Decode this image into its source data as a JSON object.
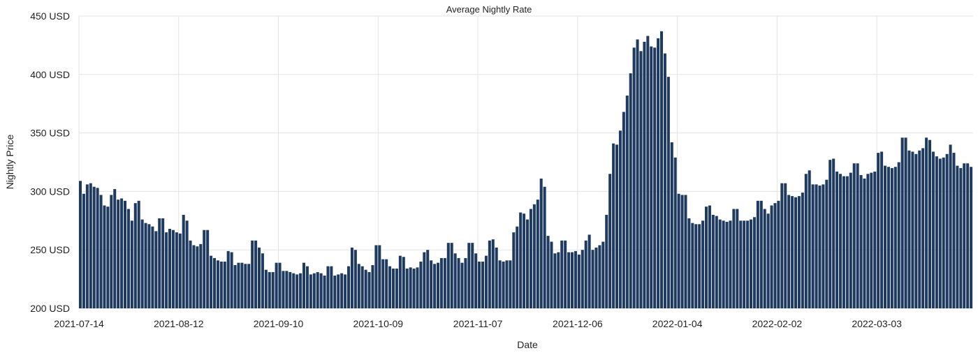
{
  "chart_data": {
    "type": "bar",
    "title": "Average Nightly Rate",
    "xlabel": "Date",
    "ylabel": "Nightly Price",
    "ylim": [
      200,
      450
    ],
    "y_ticks": [
      {
        "value": 200,
        "label": "200 USD"
      },
      {
        "value": 250,
        "label": "250 USD"
      },
      {
        "value": 300,
        "label": "300 USD"
      },
      {
        "value": 350,
        "label": "350 USD"
      },
      {
        "value": 400,
        "label": "400 USD"
      },
      {
        "value": 450,
        "label": "450 USD"
      }
    ],
    "x_ticks": [
      {
        "index": 0,
        "label": "2021-07-14"
      },
      {
        "index": 29,
        "label": "2021-08-12"
      },
      {
        "index": 58,
        "label": "2021-09-10"
      },
      {
        "index": 87,
        "label": "2021-10-09"
      },
      {
        "index": 116,
        "label": "2021-11-07"
      },
      {
        "index": 145,
        "label": "2021-12-06"
      },
      {
        "index": 174,
        "label": "2022-01-04"
      },
      {
        "index": 203,
        "label": "2022-02-02"
      },
      {
        "index": 232,
        "label": "2022-03-03"
      }
    ],
    "start_date": "2021-07-14",
    "grid": true,
    "color": "#1f3a5f",
    "values": [
      309,
      298,
      306,
      307,
      304,
      303,
      297,
      288,
      287,
      297,
      302,
      293,
      294,
      292,
      285,
      275,
      290,
      292,
      276,
      273,
      272,
      270,
      266,
      277,
      277,
      265,
      268,
      267,
      265,
      264,
      280,
      275,
      258,
      254,
      253,
      255,
      267,
      267,
      245,
      243,
      241,
      240,
      240,
      249,
      248,
      237,
      239,
      239,
      238,
      238,
      258,
      258,
      252,
      247,
      233,
      231,
      231,
      239,
      239,
      232,
      232,
      231,
      230,
      229,
      230,
      239,
      236,
      229,
      230,
      231,
      230,
      228,
      236,
      236,
      228,
      229,
      230,
      229,
      236,
      252,
      250,
      238,
      236,
      233,
      231,
      237,
      254,
      254,
      242,
      242,
      236,
      234,
      234,
      245,
      244,
      234,
      235,
      234,
      235,
      240,
      248,
      250,
      241,
      238,
      239,
      243,
      243,
      256,
      256,
      247,
      243,
      239,
      243,
      256,
      256,
      247,
      240,
      240,
      245,
      258,
      259,
      252,
      241,
      240,
      241,
      241,
      265,
      270,
      282,
      281,
      276,
      285,
      289,
      293,
      311,
      304,
      262,
      257,
      247,
      248,
      258,
      258,
      248,
      248,
      249,
      246,
      250,
      258,
      263,
      250,
      252,
      254,
      257,
      280,
      315,
      341,
      340,
      352,
      368,
      382,
      401,
      423,
      430,
      420,
      428,
      433,
      424,
      423,
      431,
      437,
      418,
      398,
      342,
      329,
      298,
      297,
      297,
      277,
      273,
      272,
      272,
      275,
      287,
      288,
      280,
      279,
      276,
      275,
      274,
      275,
      285,
      285,
      275,
      275,
      275,
      276,
      278,
      292,
      292,
      285,
      281,
      288,
      290,
      292,
      307,
      307,
      297,
      296,
      295,
      296,
      299,
      315,
      318,
      306,
      306,
      305,
      306,
      310,
      327,
      328,
      317,
      315,
      313,
      313,
      316,
      324,
      324,
      314,
      311,
      315,
      316,
      317,
      333,
      334,
      322,
      321,
      320,
      321,
      325,
      346,
      346,
      335,
      334,
      332,
      335,
      337,
      346,
      344,
      334,
      330,
      328,
      329,
      332,
      340,
      333,
      322,
      320,
      324,
      324,
      321
    ]
  }
}
